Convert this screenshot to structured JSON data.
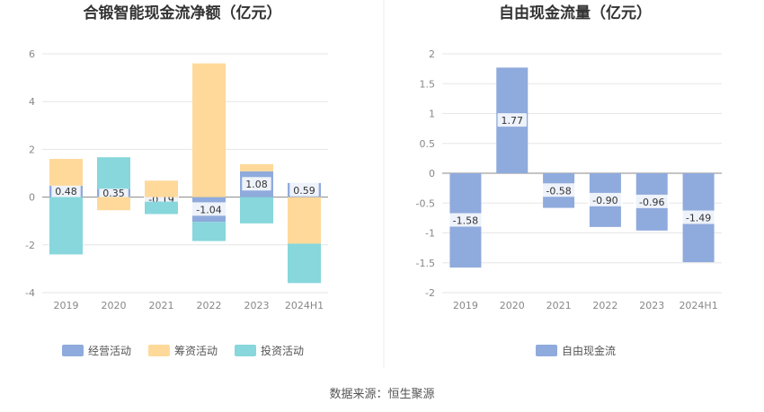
{
  "charts": [
    {
      "title": "合锻智能现金流净额（亿元）",
      "type": "bar",
      "stacked": true,
      "categories": [
        "2019",
        "2020",
        "2021",
        "2022",
        "2023",
        "2024H1"
      ],
      "ylim": [
        -4,
        6
      ],
      "yticks": [
        6,
        4,
        2,
        0,
        -2,
        -4
      ],
      "series": [
        {
          "name": "经营活动",
          "color": "#8faadc",
          "values": [
            0.48,
            0.35,
            -0.19,
            -1.04,
            1.08,
            0.59
          ],
          "labels": [
            "0.48",
            "0.35",
            "-0.19",
            "-1.04",
            "1.08",
            "0.59"
          ]
        },
        {
          "name": "筹资活动",
          "color": "#ffd99a",
          "values": [
            1.12,
            -0.55,
            0.69,
            5.6,
            0.3,
            -1.95
          ]
        },
        {
          "name": "投资活动",
          "color": "#87d7dc",
          "values": [
            -2.4,
            1.32,
            -0.52,
            -0.8,
            -1.1,
            -1.65
          ]
        }
      ]
    },
    {
      "title": "自由现金流量（亿元）",
      "type": "bar",
      "categories": [
        "2019",
        "2020",
        "2021",
        "2022",
        "2023",
        "2024H1"
      ],
      "ylim": [
        -2,
        2
      ],
      "yticks": [
        "2",
        "1.5",
        "1",
        "0.5",
        "0",
        "-0.5",
        "-1",
        "-1.5",
        "-2"
      ],
      "series": [
        {
          "name": "自由现金流",
          "color": "#8faadc",
          "values": [
            -1.58,
            1.77,
            -0.58,
            -0.9,
            -0.96,
            -1.49
          ],
          "labels": [
            "-1.58",
            "1.77",
            "-0.58",
            "-0.90",
            "-0.96",
            "-1.49"
          ]
        }
      ]
    }
  ],
  "source": "数据来源：恒生聚源"
}
